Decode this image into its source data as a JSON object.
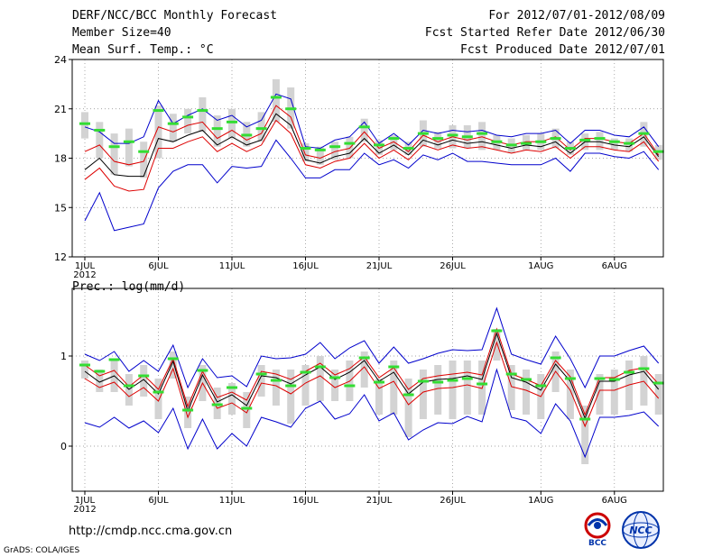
{
  "header": {
    "title": "DERF/NCC/BCC Monthly Forecast",
    "member_size": "Member Size=40",
    "variable": "Mean Surf. Temp.: °C",
    "period": "For 2012/07/01-2012/08/09",
    "started": "Fcst Started Refer Date 2012/06/30",
    "produced": "Fcst Produced Date 2012/07/01"
  },
  "footer": {
    "url": "http://cmdp.ncc.cma.gov.cn",
    "credit": "GrADS: COLA/IGES",
    "logo1_text": "BCC",
    "logo2_text": "NCC"
  },
  "colors": {
    "box": "#d3d3d3",
    "obs": "#33dd33",
    "mean": "#000000",
    "inner": "#dd0000",
    "outer": "#0000cc",
    "grid": "#888888"
  },
  "chart_data": [
    {
      "type": "line",
      "title": "Mean Surf. Temp.: °C",
      "xlabel": "",
      "ylabel": "°C",
      "ylim": [
        12,
        24
      ],
      "yticks": [
        12,
        15,
        18,
        21,
        24
      ],
      "xtick_labels": [
        "1JUL",
        "6JUL",
        "11JUL",
        "16JUL",
        "21JUL",
        "26JUL",
        "1AUG",
        "6AUG"
      ],
      "xtick_days": [
        1,
        6,
        11,
        16,
        21,
        26,
        32,
        37
      ],
      "year_label": "2012",
      "x": [
        1,
        2,
        3,
        4,
        5,
        6,
        7,
        8,
        9,
        10,
        11,
        12,
        13,
        14,
        15,
        16,
        17,
        18,
        19,
        20,
        21,
        22,
        23,
        24,
        25,
        26,
        27,
        28,
        29,
        30,
        31,
        32,
        33,
        34,
        35,
        36,
        37,
        38,
        39,
        40
      ],
      "series": [
        {
          "name": "box_top",
          "values": [
            20.8,
            20.2,
            19.5,
            19.8,
            19.0,
            21.2,
            20.7,
            21.0,
            21.7,
            20.6,
            21.0,
            20.2,
            20.8,
            22.8,
            22.3,
            18.9,
            18.7,
            19.0,
            19.3,
            20.4,
            19.1,
            19.4,
            19.0,
            20.3,
            19.6,
            20.0,
            20.0,
            20.2,
            19.4,
            19.2,
            19.4,
            19.5,
            19.8,
            19.0,
            19.5,
            19.6,
            19.2,
            19.2,
            20.2,
            18.8
          ]
        },
        {
          "name": "box_bottom",
          "values": [
            19.2,
            18.0,
            17.0,
            17.5,
            16.8,
            18.0,
            19.0,
            19.5,
            19.6,
            18.7,
            19.2,
            18.7,
            19.0,
            20.2,
            19.8,
            17.8,
            17.6,
            17.9,
            18.0,
            19.0,
            18.2,
            18.5,
            18.2,
            18.7,
            18.6,
            18.6,
            18.6,
            18.5,
            18.5,
            18.3,
            18.5,
            18.5,
            18.6,
            18.2,
            18.5,
            18.5,
            18.5,
            18.4,
            18.7,
            17.9
          ]
        },
        {
          "name": "observed",
          "values": [
            20.1,
            19.7,
            18.7,
            19.0,
            18.4,
            20.9,
            20.1,
            20.5,
            20.9,
            19.8,
            20.2,
            19.4,
            19.8,
            21.7,
            21.0,
            18.6,
            18.5,
            18.7,
            18.9,
            19.9,
            18.8,
            19.2,
            18.6,
            19.5,
            19.2,
            19.4,
            19.3,
            19.5,
            19.0,
            18.8,
            18.9,
            19.0,
            19.2,
            18.6,
            19.1,
            19.2,
            19.0,
            18.9,
            19.5,
            18.4
          ]
        },
        {
          "name": "max",
          "values": [
            19.9,
            19.6,
            18.9,
            18.9,
            19.3,
            21.5,
            20.1,
            20.6,
            21.0,
            20.3,
            20.6,
            19.9,
            20.3,
            21.9,
            21.6,
            18.7,
            18.6,
            19.1,
            19.3,
            20.2,
            18.9,
            19.5,
            18.8,
            19.7,
            19.5,
            19.7,
            19.6,
            19.7,
            19.4,
            19.3,
            19.5,
            19.5,
            19.7,
            18.9,
            19.7,
            19.7,
            19.4,
            19.3,
            19.9,
            18.7
          ]
        },
        {
          "name": "upper",
          "values": [
            18.4,
            18.8,
            17.8,
            17.6,
            17.8,
            19.9,
            19.6,
            20.0,
            20.2,
            19.2,
            19.7,
            19.1,
            19.5,
            21.2,
            20.5,
            18.2,
            18.0,
            18.4,
            18.6,
            19.6,
            18.6,
            19.0,
            18.4,
            19.4,
            19.0,
            19.3,
            19.1,
            19.3,
            19.0,
            18.8,
            19.0,
            19.0,
            19.3,
            18.5,
            19.2,
            19.2,
            19.0,
            18.9,
            19.5,
            18.2
          ]
        },
        {
          "name": "mean",
          "values": [
            17.3,
            18.0,
            17.0,
            16.9,
            16.9,
            19.2,
            19.0,
            19.4,
            19.7,
            18.8,
            19.3,
            18.8,
            19.1,
            20.7,
            20.0,
            17.9,
            17.7,
            18.1,
            18.3,
            19.2,
            18.3,
            18.8,
            18.2,
            19.1,
            18.8,
            19.1,
            18.9,
            19.0,
            18.8,
            18.6,
            18.8,
            18.7,
            19.0,
            18.3,
            19.0,
            19.0,
            18.8,
            18.7,
            19.3,
            18.1
          ]
        },
        {
          "name": "lower",
          "values": [
            16.7,
            17.4,
            16.3,
            16.0,
            16.1,
            18.6,
            18.6,
            19.0,
            19.3,
            18.4,
            18.9,
            18.4,
            18.8,
            20.3,
            19.5,
            17.6,
            17.4,
            17.8,
            18.0,
            18.9,
            18.0,
            18.5,
            17.9,
            18.8,
            18.5,
            18.8,
            18.6,
            18.7,
            18.5,
            18.3,
            18.5,
            18.4,
            18.7,
            18.0,
            18.7,
            18.7,
            18.5,
            18.4,
            19.0,
            17.8
          ]
        },
        {
          "name": "min",
          "values": [
            14.2,
            15.9,
            13.6,
            13.8,
            14.0,
            16.2,
            17.2,
            17.6,
            17.6,
            16.5,
            17.5,
            17.4,
            17.5,
            19.1,
            18.0,
            16.8,
            16.8,
            17.3,
            17.3,
            18.3,
            17.6,
            17.9,
            17.4,
            18.2,
            17.9,
            18.3,
            17.8,
            17.8,
            17.7,
            17.6,
            17.6,
            17.6,
            18.0,
            17.2,
            18.3,
            18.3,
            18.1,
            18.0,
            18.4,
            17.3
          ]
        }
      ]
    },
    {
      "type": "line",
      "title": "Prec.: log(mm/d)",
      "xlabel": "",
      "ylabel": "log(mm/d)",
      "ylim": [
        -0.5,
        1.75
      ],
      "yticks": [
        0,
        1
      ],
      "xtick_labels": [
        "1JUL",
        "6JUL",
        "11JUL",
        "16JUL",
        "21JUL",
        "26JUL",
        "1AUG",
        "6AUG"
      ],
      "xtick_days": [
        1,
        6,
        11,
        16,
        21,
        26,
        32,
        37
      ],
      "year_label": "2012",
      "x": [
        1,
        2,
        3,
        4,
        5,
        6,
        7,
        8,
        9,
        10,
        11,
        12,
        13,
        14,
        15,
        16,
        17,
        18,
        19,
        20,
        21,
        22,
        23,
        24,
        25,
        26,
        27,
        28,
        29,
        30,
        31,
        32,
        33,
        34,
        35,
        36,
        37,
        38,
        39,
        40
      ],
      "series": [
        {
          "name": "box_top",
          "values": [
            0.95,
            0.85,
            0.95,
            0.8,
            0.9,
            0.75,
            1.05,
            0.55,
            0.9,
            0.65,
            0.7,
            0.6,
            0.9,
            0.85,
            0.85,
            0.9,
            1.0,
            0.85,
            0.95,
            1.05,
            0.75,
            0.95,
            0.75,
            0.85,
            0.9,
            0.95,
            0.95,
            0.95,
            1.3,
            0.9,
            0.85,
            0.8,
            1.05,
            0.85,
            0.45,
            0.8,
            0.85,
            0.95,
            1.0,
            0.8
          ]
        },
        {
          "name": "box_bottom",
          "values": [
            0.75,
            0.6,
            0.6,
            0.45,
            0.55,
            0.3,
            0.75,
            0.2,
            0.5,
            0.3,
            0.35,
            0.2,
            0.55,
            0.45,
            0.25,
            0.45,
            0.5,
            0.5,
            0.5,
            0.65,
            0.35,
            0.35,
            0.1,
            0.3,
            0.35,
            0.3,
            0.35,
            0.35,
            0.95,
            0.4,
            0.35,
            0.3,
            0.6,
            0.3,
            -0.2,
            0.35,
            0.35,
            0.4,
            0.45,
            0.35
          ]
        },
        {
          "name": "observed",
          "values": [
            0.9,
            0.83,
            0.96,
            0.67,
            0.78,
            0.6,
            0.97,
            0.4,
            0.84,
            0.46,
            0.65,
            0.42,
            0.8,
            0.73,
            0.67,
            0.82,
            0.88,
            0.76,
            0.67,
            0.98,
            0.71,
            0.88,
            0.57,
            0.72,
            0.71,
            0.73,
            0.75,
            0.69,
            1.28,
            0.8,
            0.74,
            0.67,
            0.98,
            0.75,
            0.3,
            0.75,
            0.74,
            0.82,
            0.86,
            0.7
          ]
        },
        {
          "name": "max",
          "values": [
            1.02,
            0.95,
            1.05,
            0.83,
            0.95,
            0.83,
            1.12,
            0.65,
            0.97,
            0.76,
            0.78,
            0.66,
            1.0,
            0.97,
            0.98,
            1.02,
            1.15,
            0.97,
            1.09,
            1.17,
            0.92,
            1.1,
            0.92,
            0.97,
            1.03,
            1.07,
            1.06,
            1.07,
            1.53,
            1.02,
            0.96,
            0.91,
            1.22,
            0.97,
            0.65,
            1.0,
            1.0,
            1.06,
            1.11,
            0.92
          ]
        },
        {
          "name": "upper",
          "values": [
            0.9,
            0.78,
            0.84,
            0.66,
            0.79,
            0.63,
            0.97,
            0.44,
            0.83,
            0.54,
            0.6,
            0.51,
            0.83,
            0.8,
            0.74,
            0.83,
            0.92,
            0.79,
            0.86,
            0.99,
            0.76,
            0.87,
            0.63,
            0.75,
            0.78,
            0.8,
            0.82,
            0.79,
            1.3,
            0.8,
            0.74,
            0.67,
            0.95,
            0.77,
            0.35,
            0.76,
            0.76,
            0.84,
            0.87,
            0.69
          ]
        },
        {
          "name": "mean",
          "values": [
            0.83,
            0.71,
            0.78,
            0.63,
            0.74,
            0.58,
            0.94,
            0.39,
            0.79,
            0.49,
            0.57,
            0.45,
            0.78,
            0.76,
            0.69,
            0.79,
            0.88,
            0.74,
            0.82,
            0.95,
            0.72,
            0.82,
            0.58,
            0.71,
            0.74,
            0.75,
            0.78,
            0.74,
            1.25,
            0.76,
            0.71,
            0.62,
            0.91,
            0.72,
            0.31,
            0.72,
            0.72,
            0.79,
            0.83,
            0.63
          ]
        },
        {
          "name": "lower",
          "values": [
            0.75,
            0.65,
            0.71,
            0.55,
            0.65,
            0.5,
            0.86,
            0.32,
            0.7,
            0.42,
            0.48,
            0.37,
            0.7,
            0.67,
            0.58,
            0.7,
            0.78,
            0.65,
            0.72,
            0.88,
            0.64,
            0.72,
            0.46,
            0.6,
            0.64,
            0.65,
            0.68,
            0.64,
            1.15,
            0.66,
            0.62,
            0.55,
            0.83,
            0.62,
            0.22,
            0.62,
            0.62,
            0.68,
            0.72,
            0.53
          ]
        },
        {
          "name": "min",
          "values": [
            0.26,
            0.21,
            0.32,
            0.2,
            0.28,
            0.15,
            0.42,
            -0.03,
            0.3,
            -0.03,
            0.14,
            0.0,
            0.32,
            0.27,
            0.21,
            0.42,
            0.5,
            0.3,
            0.36,
            0.57,
            0.28,
            0.37,
            0.07,
            0.18,
            0.26,
            0.25,
            0.33,
            0.27,
            0.85,
            0.32,
            0.28,
            0.14,
            0.47,
            0.28,
            -0.12,
            0.32,
            0.32,
            0.34,
            0.38,
            0.22
          ]
        }
      ]
    }
  ]
}
